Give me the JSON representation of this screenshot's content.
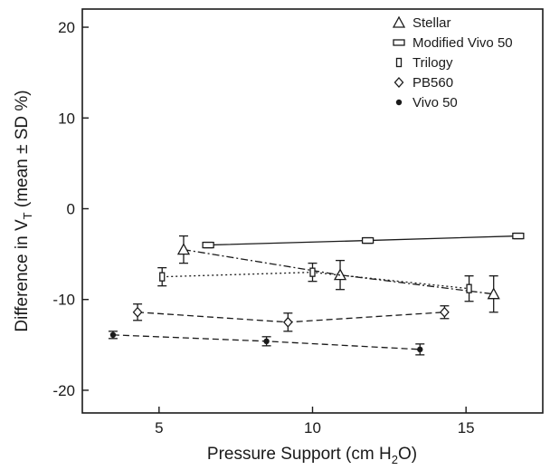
{
  "chart_data": {
    "type": "line",
    "title": "",
    "xlabel_main": "Pressure Support (cm H",
    "xlabel_sub": "2",
    "xlabel_end": "O)",
    "ylabel_main": "Difference in V",
    "ylabel_sub": "T",
    "ylabel_end": " (mean ± SD %)",
    "xlim": [
      2.5,
      17.5
    ],
    "ylim": [
      -22.5,
      22
    ],
    "xticks": [
      5,
      10,
      15
    ],
    "yticks": [
      20,
      10,
      0,
      -10,
      -20
    ],
    "grid": false,
    "legend_position": "top-right",
    "series": [
      {
        "name": "Stellar",
        "marker": "triangle",
        "line": "dashdot",
        "points": [
          {
            "x": 5.8,
            "y": -4.5,
            "sd": 1.5
          },
          {
            "x": 10.9,
            "y": -7.3,
            "sd": 1.6
          },
          {
            "x": 15.9,
            "y": -9.4,
            "sd": 2.0
          }
        ]
      },
      {
        "name": "Modified Vivo 50",
        "marker": "rect",
        "line": "solid",
        "points": [
          {
            "x": 6.6,
            "y": -4.0,
            "sd": 0.3
          },
          {
            "x": 11.8,
            "y": -3.5,
            "sd": 0.3
          },
          {
            "x": 16.7,
            "y": -3.0,
            "sd": 0.3
          }
        ]
      },
      {
        "name": "Trilogy",
        "marker": "rect-tall",
        "line": "dotted",
        "points": [
          {
            "x": 5.1,
            "y": -7.5,
            "sd": 1.0
          },
          {
            "x": 10.0,
            "y": -7.0,
            "sd": 1.0
          },
          {
            "x": 15.1,
            "y": -8.8,
            "sd": 1.4
          }
        ]
      },
      {
        "name": "PB560",
        "marker": "diamond",
        "line": "dashed",
        "points": [
          {
            "x": 4.3,
            "y": -11.4,
            "sd": 0.9
          },
          {
            "x": 9.2,
            "y": -12.5,
            "sd": 1.0
          },
          {
            "x": 14.3,
            "y": -11.4,
            "sd": 0.7
          }
        ]
      },
      {
        "name": "Vivo 50",
        "marker": "dot",
        "line": "dashed",
        "points": [
          {
            "x": 3.5,
            "y": -13.9,
            "sd": 0.4
          },
          {
            "x": 8.5,
            "y": -14.6,
            "sd": 0.5
          },
          {
            "x": 13.5,
            "y": -15.5,
            "sd": 0.6
          }
        ]
      }
    ]
  }
}
